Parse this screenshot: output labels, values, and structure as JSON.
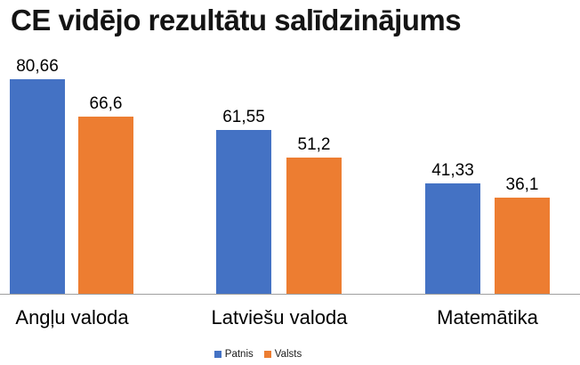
{
  "title": "CE vidējo rezultātu salīdzinājums",
  "chart_data": {
    "type": "bar",
    "title": "CE vidējo rezultātu salīdzinājums",
    "categories": [
      "Angļu valoda",
      "Latviešu valoda",
      "Matemātika"
    ],
    "series": [
      {
        "name": "Patnis",
        "color": "#4472C4",
        "values": [
          80.66,
          61.55,
          41.33
        ],
        "value_labels": [
          "80,66",
          "61,55",
          "41,33"
        ]
      },
      {
        "name": "Valsts",
        "color": "#ED7D31",
        "values": [
          66.6,
          51.2,
          36.1
        ],
        "value_labels": [
          "66,6",
          "51,2",
          "36,1"
        ]
      }
    ],
    "xlabel": "",
    "ylabel": "",
    "ylim": [
      0,
      90
    ],
    "grid": false,
    "y_axis_visible": false,
    "data_labels_visible": true,
    "legend_position": "bottom"
  },
  "colors": {
    "series_patnis": "#4472C4",
    "series_valsts": "#ED7D31",
    "axis_line": "#a0a0a0",
    "title_text": "#141414",
    "label_text": "#000000",
    "background": "#ffffff"
  }
}
